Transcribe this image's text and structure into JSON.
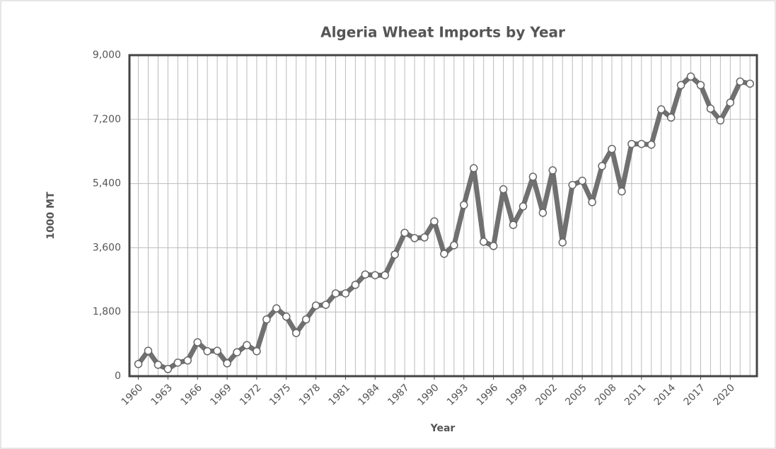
{
  "chart_data": {
    "type": "line",
    "title": "Algeria Wheat Imports by Year",
    "x_label": "Year",
    "y_label": "1000 MT",
    "x": [
      1960,
      1961,
      1962,
      1963,
      1964,
      1965,
      1966,
      1967,
      1968,
      1969,
      1970,
      1971,
      1972,
      1973,
      1974,
      1975,
      1976,
      1977,
      1978,
      1979,
      1980,
      1981,
      1982,
      1983,
      1984,
      1985,
      1986,
      1987,
      1988,
      1989,
      1990,
      1991,
      1992,
      1993,
      1994,
      1995,
      1996,
      1997,
      1998,
      1999,
      2000,
      2001,
      2002,
      2003,
      2004,
      2005,
      2006,
      2007,
      2008,
      2009,
      2010,
      2011,
      2012,
      2013,
      2014,
      2015,
      2016,
      2017,
      2018,
      2019,
      2020,
      2021,
      2022
    ],
    "series": [
      {
        "name": "1000 MT",
        "color": "#707070",
        "values": [
          340,
          710,
          320,
          200,
          380,
          440,
          950,
          700,
          710,
          360,
          670,
          870,
          700,
          1590,
          1900,
          1670,
          1210,
          1590,
          1980,
          2000,
          2320,
          2320,
          2560,
          2850,
          2830,
          2830,
          3410,
          4020,
          3870,
          3890,
          4340,
          3430,
          3670,
          4800,
          5830,
          3770,
          3650,
          5240,
          4240,
          4760,
          5590,
          4580,
          5770,
          3750,
          5360,
          5480,
          4880,
          5890,
          6370,
          5180,
          6510,
          6510,
          6490,
          7480,
          7250,
          8160,
          8400,
          8160,
          7500,
          7170,
          7670,
          8260,
          8200
        ]
      }
    ],
    "xlim": [
      1959.1,
      2022.7
    ],
    "xticks": [
      1960,
      1963,
      1966,
      1969,
      1972,
      1975,
      1978,
      1981,
      1984,
      1987,
      1990,
      1993,
      1996,
      1999,
      2002,
      2005,
      2008,
      2011,
      2014,
      2017,
      2020
    ],
    "ylim": [
      0,
      9000
    ],
    "yticks": [
      0,
      {
        "value": 1800,
        "label": "1,800"
      },
      {
        "value": 3600,
        "label": "3,600"
      },
      {
        "value": 5400,
        "label": "5,400"
      },
      {
        "value": 7200,
        "label": "7,200"
      },
      {
        "value": 9000,
        "label": "9,000"
      }
    ],
    "grid": true
  }
}
